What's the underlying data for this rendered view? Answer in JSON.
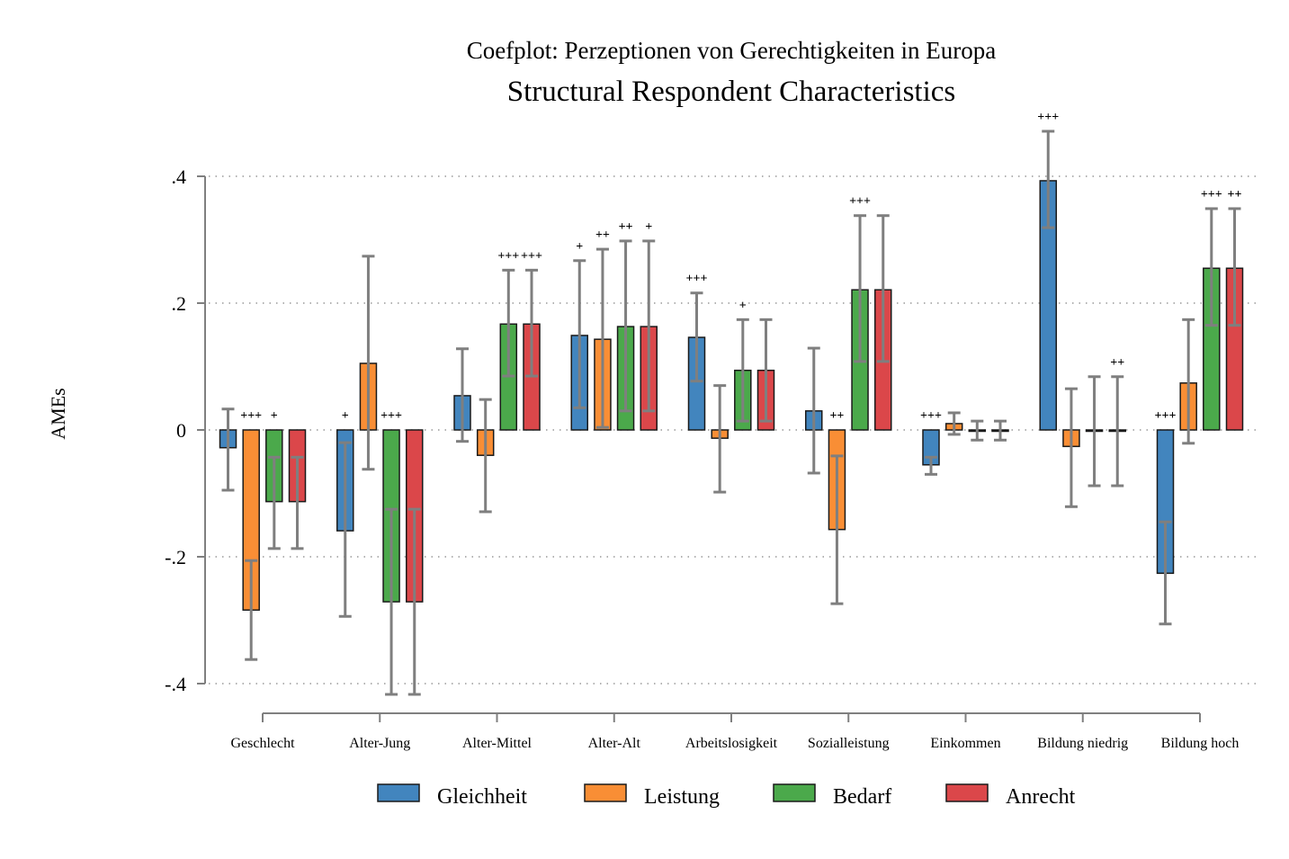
{
  "chart_data": {
    "type": "bar",
    "title": "Coefplot: Perzeptionen von Gerechtigkeiten in Europa",
    "subtitle": "Structural Respondent Characteristics",
    "ylabel": "AMEs",
    "xlabel": "",
    "ylim": [
      -0.4,
      0.4
    ],
    "yticks": [
      0.4,
      0.2,
      0,
      -0.2,
      -0.4
    ],
    "ytick_labels": [
      ".4",
      ".2",
      "0",
      "-.2",
      "-.4"
    ],
    "grid": true,
    "legend_position": "bottom",
    "error_bars": "confidence interval",
    "categories": [
      "Geschlecht",
      "Alter-Jung",
      "Alter-Mittel",
      "Alter-Alt",
      "Arbeitslosigkeit",
      "Sozialleistung",
      "Einkommen",
      "Bildung niedrig",
      "Bildung hoch"
    ],
    "series": [
      {
        "name": "Gleichheit",
        "color": "#4285BE",
        "values": [
          -0.028,
          -0.159,
          0.054,
          0.149,
          0.146,
          0.03,
          -0.055,
          0.393,
          -0.226
        ],
        "ci_low": [
          -0.095,
          -0.294,
          -0.018,
          0.035,
          0.077,
          -0.068,
          -0.07,
          0.319,
          -0.306
        ],
        "ci_high": [
          0.033,
          -0.02,
          0.128,
          0.267,
          0.216,
          0.129,
          -0.043,
          0.471,
          -0.145
        ],
        "sig": [
          "",
          "+",
          "",
          "+",
          "+++",
          "",
          "+++",
          "+++",
          "+++"
        ]
      },
      {
        "name": "Leistung",
        "color": "#F98E35",
        "values": [
          -0.284,
          0.105,
          -0.04,
          0.143,
          -0.013,
          -0.157,
          0.01,
          -0.026,
          0.074
        ],
        "ci_low": [
          -0.362,
          -0.062,
          -0.129,
          0.004,
          -0.098,
          -0.274,
          -0.007,
          -0.121,
          -0.021
        ],
        "ci_high": [
          -0.206,
          0.274,
          0.048,
          0.285,
          0.07,
          -0.041,
          0.027,
          0.065,
          0.174
        ],
        "sig": [
          "+++",
          "",
          "",
          "++",
          "",
          "++",
          "",
          "",
          ""
        ]
      },
      {
        "name": "Bedarf",
        "color": "#4BA94B",
        "values": [
          -0.113,
          -0.271,
          0.167,
          0.163,
          0.094,
          0.221,
          0.0,
          0.0,
          0.255
        ],
        "ci_low": [
          -0.187,
          -0.417,
          0.085,
          0.03,
          0.014,
          0.108,
          -0.016,
          -0.088,
          0.165
        ],
        "ci_high": [
          -0.043,
          -0.125,
          0.252,
          0.298,
          0.174,
          0.338,
          0.014,
          0.084,
          0.349
        ],
        "sig": [
          "+",
          "+++",
          "+++",
          "++",
          "+",
          "+++",
          "",
          "",
          "+++"
        ]
      },
      {
        "name": "Anrecht",
        "color": "#DB474A",
        "values": [
          -0.113,
          -0.271,
          0.167,
          0.163,
          0.094,
          0.221,
          0.0,
          0.0,
          0.255
        ],
        "ci_low": [
          -0.187,
          -0.417,
          0.085,
          0.03,
          0.014,
          0.108,
          -0.016,
          -0.088,
          0.165
        ],
        "ci_high": [
          -0.043,
          -0.125,
          0.252,
          0.298,
          0.174,
          0.338,
          0.014,
          0.084,
          0.349
        ],
        "sig": [
          "",
          "",
          "+++",
          "+",
          "",
          "",
          "",
          "++",
          "++"
        ]
      }
    ]
  }
}
